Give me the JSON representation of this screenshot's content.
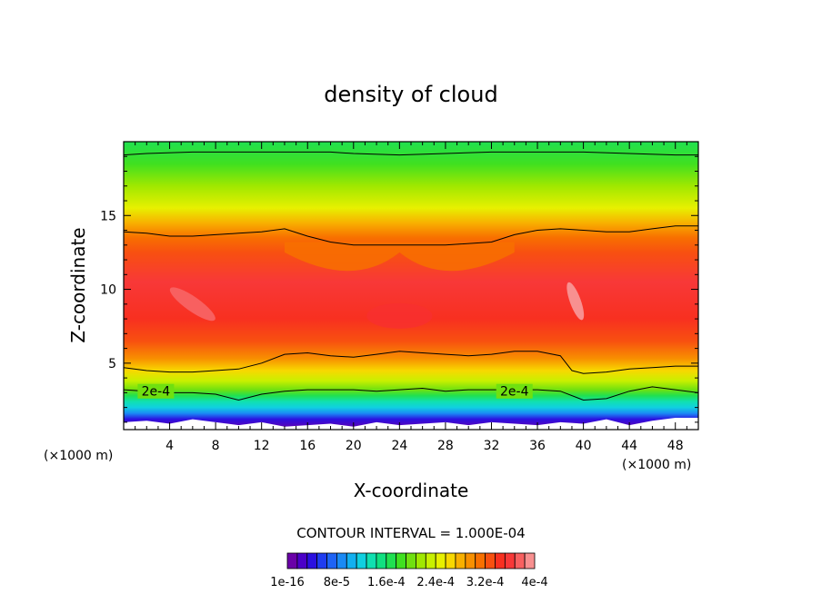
{
  "chart_data": {
    "type": "heatmap",
    "title": "density of cloud",
    "xlabel": "X-coordinate",
    "ylabel": "Z-coordinate",
    "x_unit": "(×1000 m)",
    "xlim": [
      0,
      50
    ],
    "ylim": [
      0.5,
      20
    ],
    "x_ticks": [
      4,
      8,
      12,
      16,
      20,
      24,
      28,
      32,
      36,
      40,
      44,
      48
    ],
    "y_ticks": [
      5,
      10,
      15
    ],
    "contour_interval_text": "CONTOUR INTERVAL = 1.000E-04",
    "contour_labels": [
      {
        "text": "2e-4",
        "x": 2.8,
        "z": 3.1
      },
      {
        "text": "2e-4",
        "x": 34.0,
        "z": 3.1
      }
    ],
    "colorbar": {
      "labels": [
        "1e-16",
        "8e-5",
        "1.6e-4",
        "2.4e-4",
        "3.2e-4",
        "4e-4"
      ],
      "colors": [
        "#6a00a8",
        "#4b00c8",
        "#2b10e0",
        "#1f3cf0",
        "#1e63f5",
        "#1a8af5",
        "#12b0f0",
        "#10d0e0",
        "#10e0b0",
        "#10e080",
        "#20e050",
        "#40e020",
        "#70e010",
        "#a0e800",
        "#c8f000",
        "#e8f000",
        "#f8d800",
        "#f8b000",
        "#f89000",
        "#f87000",
        "#f85010",
        "#f83020",
        "#f83838",
        "#f86060",
        "#f89090"
      ]
    },
    "color_stops": [
      {
        "z": 0.5,
        "color": "#6a00a8"
      },
      {
        "z": 1.2,
        "color": "#2b10e0"
      },
      {
        "z": 1.6,
        "color": "#1a8af5"
      },
      {
        "z": 2.0,
        "color": "#10d0e0"
      },
      {
        "z": 2.4,
        "color": "#10e0b0"
      },
      {
        "z": 2.8,
        "color": "#20e050"
      },
      {
        "z": 3.2,
        "color": "#70e010"
      },
      {
        "z": 3.8,
        "color": "#c8f000"
      },
      {
        "z": 4.5,
        "color": "#f8d800"
      },
      {
        "z": 5.3,
        "color": "#f89000"
      },
      {
        "z": 6.5,
        "color": "#f85010"
      },
      {
        "z": 8.0,
        "color": "#f83020"
      },
      {
        "z": 10.5,
        "color": "#f83838"
      },
      {
        "z": 12.5,
        "color": "#f85010"
      },
      {
        "z": 13.5,
        "color": "#f87000"
      },
      {
        "z": 14.5,
        "color": "#f8b000"
      },
      {
        "z": 15.5,
        "color": "#e8f000"
      },
      {
        "z": 17.0,
        "color": "#a0e800"
      },
      {
        "z": 18.5,
        "color": "#40e020"
      },
      {
        "z": 20.0,
        "color": "#20e050"
      }
    ],
    "contours": [
      {
        "x": [
          0,
          2,
          6,
          10,
          14,
          16,
          18,
          20,
          24,
          28,
          32,
          36,
          40,
          44,
          48,
          50
        ],
        "z": [
          19.1,
          19.2,
          19.3,
          19.3,
          19.3,
          19.3,
          19.3,
          19.2,
          19.1,
          19.2,
          19.3,
          19.3,
          19.3,
          19.2,
          19.1,
          19.1
        ]
      },
      {
        "x": [
          0,
          2,
          4,
          6,
          8,
          10,
          12,
          14,
          16,
          18,
          20,
          24,
          28,
          32,
          34,
          36,
          38,
          40,
          42,
          44,
          46,
          48,
          50
        ],
        "z": [
          13.9,
          13.8,
          13.6,
          13.6,
          13.7,
          13.8,
          13.9,
          14.1,
          13.6,
          13.2,
          13.0,
          13.0,
          13.0,
          13.2,
          13.7,
          14.0,
          14.1,
          14.0,
          13.9,
          13.9,
          14.1,
          14.3,
          14.3
        ]
      },
      {
        "x": [
          0,
          2,
          4,
          6,
          8,
          10,
          12,
          14,
          16,
          18,
          20,
          22,
          24,
          26,
          28,
          30,
          32,
          34,
          36,
          38,
          39,
          40,
          42,
          44,
          46,
          48,
          50
        ],
        "z": [
          4.7,
          4.5,
          4.4,
          4.4,
          4.5,
          4.6,
          5.0,
          5.6,
          5.7,
          5.5,
          5.4,
          5.6,
          5.8,
          5.7,
          5.6,
          5.5,
          5.6,
          5.8,
          5.8,
          5.5,
          4.5,
          4.3,
          4.4,
          4.6,
          4.7,
          4.8,
          4.8
        ]
      },
      {
        "x": [
          0,
          2,
          4,
          6,
          8,
          10,
          12,
          14,
          16,
          18,
          20,
          22,
          24,
          26,
          28,
          30,
          32,
          34,
          36,
          38,
          40,
          42,
          44,
          46,
          48,
          50
        ],
        "z": [
          3.2,
          3.1,
          3.0,
          3.0,
          2.9,
          2.5,
          2.9,
          3.1,
          3.2,
          3.2,
          3.2,
          3.1,
          3.2,
          3.3,
          3.1,
          3.2,
          3.2,
          3.2,
          3.2,
          3.1,
          2.5,
          2.6,
          3.1,
          3.4,
          3.2,
          3.0
        ]
      }
    ]
  }
}
